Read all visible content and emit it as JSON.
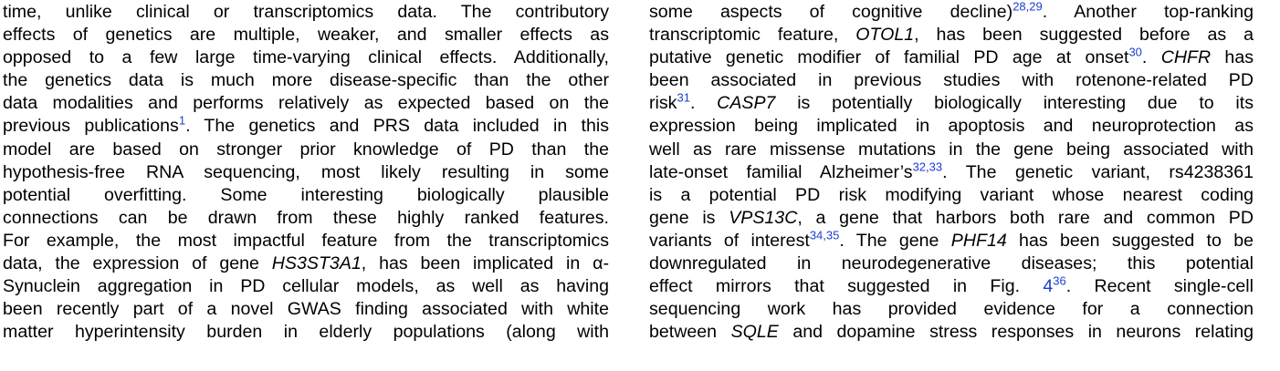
{
  "left_column": [
    [
      {
        "t": "time, unlike clinical or transcriptomics data. The contributory"
      }
    ],
    [
      {
        "t": "effects of genetics are multiple, weaker, and smaller effects as"
      }
    ],
    [
      {
        "t": "opposed to a few large time-varying clinical effects. Additionally,"
      }
    ],
    [
      {
        "t": "the genetics data is much more disease-specific than the other"
      }
    ],
    [
      {
        "t": "data modalities and performs relatively as expected based on the"
      }
    ],
    [
      {
        "t": "previous publications"
      },
      {
        "t": "1",
        "s": "ref"
      },
      {
        "t": ". The genetics and PRS data included in this"
      }
    ],
    [
      {
        "t": "model are based on stronger prior knowledge of PD than the"
      }
    ],
    [
      {
        "t": "hypothesis-free RNA sequencing, most likely resulting in some"
      }
    ],
    [
      {
        "t": "potential overfitting. Some interesting biologically plausible"
      }
    ],
    [
      {
        "t": "connections can be drawn from these highly ranked features."
      }
    ],
    [
      {
        "t": "For example, the most impactful feature from the transcriptomics"
      }
    ],
    [
      {
        "t": "data, the expression of gene "
      },
      {
        "t": "HS3ST3A1",
        "s": "ital"
      },
      {
        "t": ", has been implicated in α-"
      }
    ],
    [
      {
        "t": "Synuclein aggregation in PD cellular models, as well as having"
      }
    ],
    [
      {
        "t": "been recently part of a novel GWAS finding associated with white"
      }
    ],
    [
      {
        "t": "matter hyperintensity burden in elderly populations (along with"
      }
    ]
  ],
  "right_column": [
    [
      {
        "t": "some aspects of cognitive decline)"
      },
      {
        "t": "28,29",
        "s": "ref"
      },
      {
        "t": ". Another top-ranking"
      }
    ],
    [
      {
        "t": "transcriptomic feature, "
      },
      {
        "t": "OTOL1",
        "s": "ital"
      },
      {
        "t": ", has been suggested before as a"
      }
    ],
    [
      {
        "t": "putative genetic modifier of familial PD age at onset"
      },
      {
        "t": "30",
        "s": "ref"
      },
      {
        "t": ". "
      },
      {
        "t": "CHFR",
        "s": "ital"
      },
      {
        "t": " has"
      }
    ],
    [
      {
        "t": "been associated in previous studies with rotenone-related PD"
      }
    ],
    [
      {
        "t": "risk"
      },
      {
        "t": "31",
        "s": "ref"
      },
      {
        "t": ". "
      },
      {
        "t": "CASP7",
        "s": "ital"
      },
      {
        "t": " is potentially biologically interesting due to its"
      }
    ],
    [
      {
        "t": "expression being implicated in apoptosis and neuroprotection as"
      }
    ],
    [
      {
        "t": "well as rare missense mutations in the gene being associated with"
      }
    ],
    [
      {
        "t": "late-onset familial Alzheimer’s"
      },
      {
        "t": "32,33",
        "s": "ref"
      },
      {
        "t": ". The genetic variant, rs4238361"
      }
    ],
    [
      {
        "t": "is a potential PD risk modifying variant whose nearest coding"
      }
    ],
    [
      {
        "t": "gene is "
      },
      {
        "t": "VPS13C",
        "s": "ital"
      },
      {
        "t": ", a gene that harbors both rare and common PD"
      }
    ],
    [
      {
        "t": "variants of interest"
      },
      {
        "t": "34,35",
        "s": "ref"
      },
      {
        "t": ". The gene "
      },
      {
        "t": "PHF14",
        "s": "ital"
      },
      {
        "t": " has been suggested to be"
      }
    ],
    [
      {
        "t": "downregulated in neurodegenerative diseases; this potential"
      }
    ],
    [
      {
        "t": "effect mirrors that suggested in Fig. "
      },
      {
        "t": "4",
        "s": "fig-ref"
      },
      {
        "t": "36",
        "s": "ref"
      },
      {
        "t": ". Recent single-cell"
      }
    ],
    [
      {
        "t": "sequencing work has provided evidence for a connection"
      }
    ],
    [
      {
        "t": "between "
      },
      {
        "t": "SQLE",
        "s": "ital"
      },
      {
        "t": " and dopamine stress responses in neurons relating"
      }
    ]
  ]
}
